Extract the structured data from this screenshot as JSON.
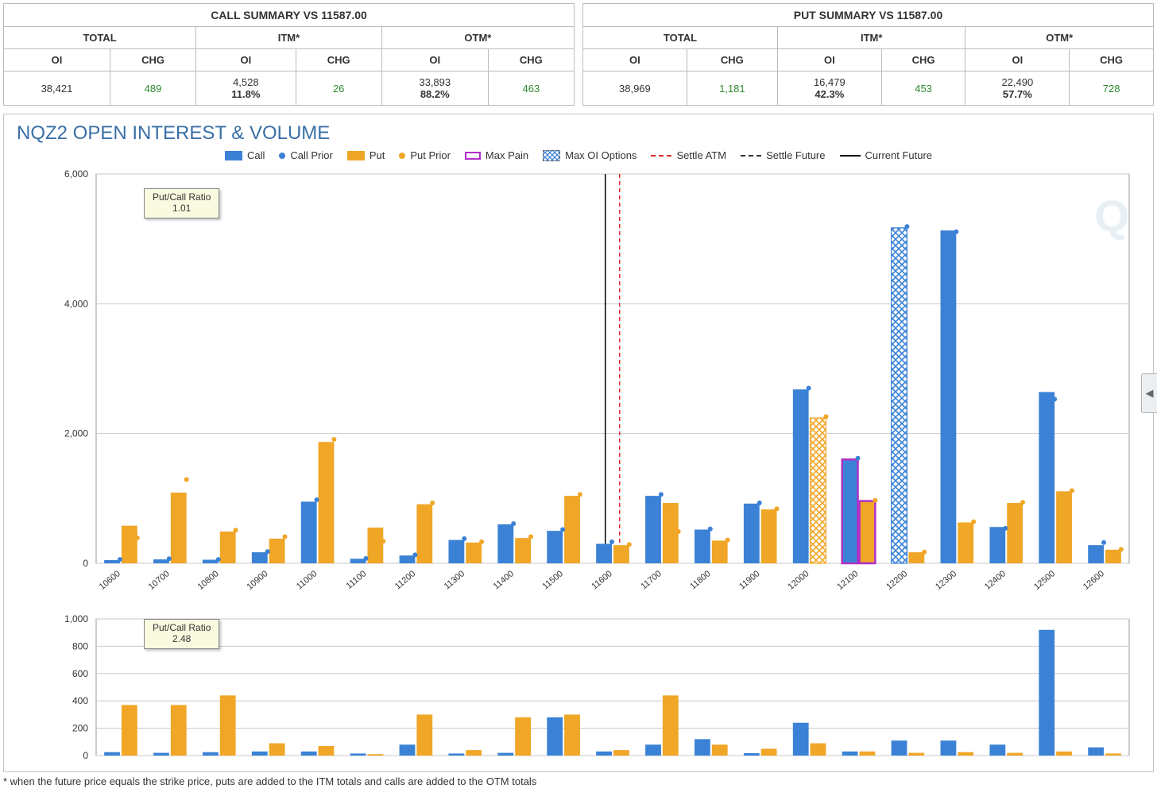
{
  "call_summary": {
    "title": "CALL SUMMARY VS 11587.00",
    "groups": [
      "TOTAL",
      "ITM*",
      "OTM*"
    ],
    "columns": [
      "OI",
      "CHG"
    ],
    "row": {
      "total_oi": "38,421",
      "total_chg": "489",
      "itm_oi": "4,528",
      "itm_pct": "11.8%",
      "itm_chg": "26",
      "otm_oi": "33,893",
      "otm_pct": "88.2%",
      "otm_chg": "463"
    }
  },
  "put_summary": {
    "title": "PUT SUMMARY VS 11587.00",
    "groups": [
      "TOTAL",
      "ITM*",
      "OTM*"
    ],
    "columns": [
      "OI",
      "CHG"
    ],
    "row": {
      "total_oi": "38,969",
      "total_chg": "1,181",
      "itm_oi": "16,479",
      "itm_pct": "42.3%",
      "itm_chg": "453",
      "otm_oi": "22,490",
      "otm_pct": "57.7%",
      "otm_chg": "728"
    }
  },
  "chart": {
    "title": "NQZ2 OPEN INTEREST & VOLUME",
    "legend": {
      "call": "Call",
      "call_prior": "Call Prior",
      "put": "Put",
      "put_prior": "Put Prior",
      "max_pain": "Max Pain",
      "max_oi": "Max OI Options",
      "settle_atm": "Settle ATM",
      "settle_future": "Settle Future",
      "current_future": "Current Future"
    },
    "colors": {
      "call": "#3b82d6",
      "put": "#f0a626",
      "max_pain_border": "#b030c8",
      "hatch": "#3b82d6",
      "settle_atm": "#e02828",
      "settle_future": "#333333",
      "current_future": "#000000",
      "grid": "#c8c8c8",
      "plot_border": "#999999",
      "bg": "#ffffff",
      "chg_green": "#2e8b2e",
      "text": "#333333"
    },
    "strikes": [
      "10600",
      "10700",
      "10800",
      "10900",
      "11000",
      "11100",
      "11200",
      "11300",
      "11400",
      "11500",
      "11600",
      "11700",
      "11800",
      "11900",
      "12000",
      "12100",
      "12200",
      "12300",
      "12400",
      "12500",
      "12600"
    ],
    "oi": {
      "type": "bar",
      "ylim": [
        0,
        6000
      ],
      "yticks": [
        0,
        2000,
        4000,
        6000
      ],
      "ytick_labels": [
        "0",
        "2,000",
        "4,000",
        "6,000"
      ],
      "ratio_label": "Put/Call Ratio",
      "ratio_value": "1.01",
      "current_future_x": "11580",
      "settle_atm_x": "11620",
      "max_pain_index": 15,
      "max_oi_call_index": 16,
      "max_oi_put_index": 14,
      "call": [
        50,
        60,
        55,
        170,
        950,
        70,
        120,
        360,
        600,
        500,
        300,
        1040,
        520,
        920,
        2680,
        1600,
        5170,
        5130,
        560,
        2640,
        280
      ],
      "call_prior": [
        60,
        70,
        60,
        180,
        980,
        75,
        130,
        380,
        610,
        520,
        330,
        1060,
        530,
        930,
        2700,
        1620,
        5190,
        5110,
        540,
        2530,
        320
      ],
      "put": [
        580,
        1090,
        490,
        380,
        1870,
        550,
        910,
        320,
        390,
        1040,
        280,
        930,
        350,
        830,
        2240,
        960,
        170,
        630,
        930,
        1110,
        210
      ],
      "put_prior": [
        390,
        1290,
        510,
        410,
        1910,
        340,
        930,
        330,
        410,
        1060,
        290,
        490,
        360,
        840,
        2260,
        970,
        175,
        640,
        940,
        1120,
        215
      ]
    },
    "vol": {
      "type": "bar",
      "ylim": [
        0,
        1000
      ],
      "yticks": [
        0,
        200,
        400,
        600,
        800,
        1000
      ],
      "ytick_labels": [
        "0",
        "200",
        "400",
        "600",
        "800",
        "1,000"
      ],
      "ratio_label": "Put/Call Ratio",
      "ratio_value": "2.48",
      "call": [
        25,
        20,
        25,
        30,
        30,
        15,
        80,
        15,
        20,
        280,
        30,
        80,
        120,
        18,
        240,
        30,
        110,
        110,
        80,
        920,
        60
      ],
      "put": [
        370,
        370,
        440,
        90,
        70,
        10,
        300,
        40,
        280,
        300,
        40,
        440,
        80,
        50,
        90,
        30,
        20,
        25,
        20,
        30,
        15
      ]
    },
    "watermark": "Q"
  },
  "footnote": "* when the future price equals the strike price, puts are added to the ITM totals and calls are added to the OTM totals"
}
